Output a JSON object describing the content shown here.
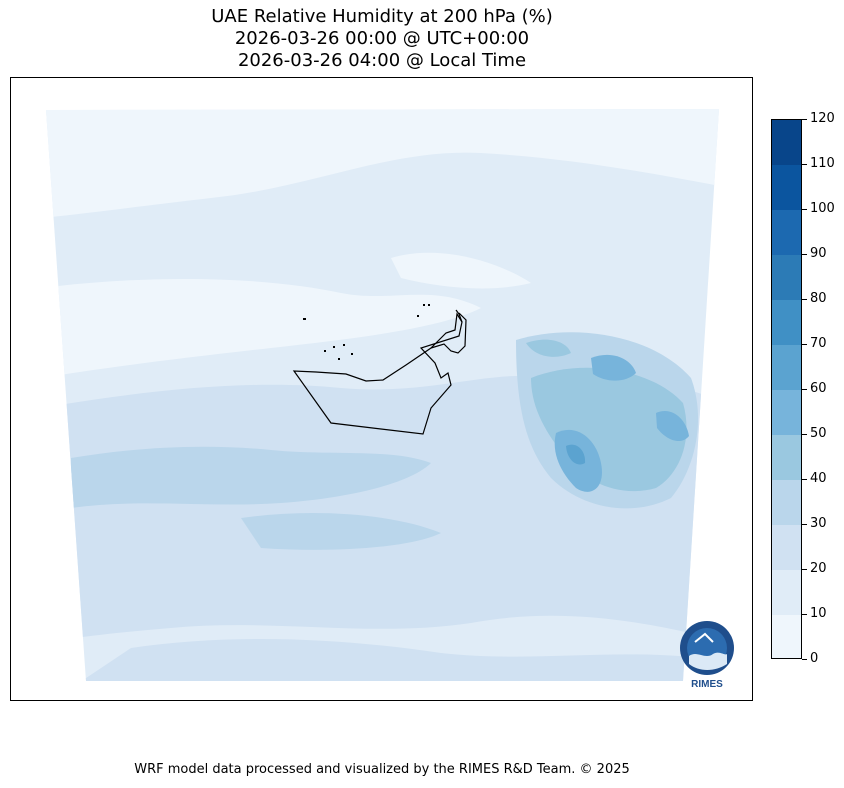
{
  "title": {
    "line1": "UAE Relative Humidity at 200 hPa (%)",
    "line2": "2026-03-26 00:00 @ UTC+00:00",
    "line3": "2026-03-26 04:00 @ Local Time"
  },
  "colorbar": {
    "ticks": [
      "0",
      "10",
      "20",
      "30",
      "40",
      "50",
      "60",
      "70",
      "80",
      "90",
      "100",
      "110",
      "120"
    ],
    "colors": [
      "#eff6fc",
      "#e0ecf7",
      "#d0e1f2",
      "#bad6eb",
      "#9ac8e0",
      "#77b4db",
      "#5ba3d0",
      "#4090c5",
      "#2c7bb6",
      "#1c69b0",
      "#0b559f",
      "#08458a"
    ]
  },
  "logo": {
    "text": "RIMES"
  },
  "footer": "WRF model data processed and visualized by the RIMES R&D Team. © 2025",
  "map": {
    "region": "United Arab Emirates",
    "variable": "Relative Humidity",
    "level": "200 hPa"
  }
}
